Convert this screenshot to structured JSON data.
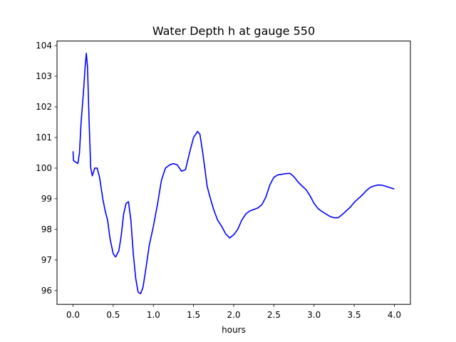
{
  "chart_data": {
    "type": "line",
    "title": "Water Depth h at gauge 550",
    "xlabel": "hours",
    "ylabel": "",
    "xlim": [
      -0.2,
      4.2
    ],
    "ylim": [
      95.55,
      104.15
    ],
    "grid": false,
    "legend": "none",
    "x_ticks": [
      0.0,
      0.5,
      1.0,
      1.5,
      2.0,
      2.5,
      3.0,
      3.5,
      4.0
    ],
    "x_tick_labels": [
      "0.0",
      "0.5",
      "1.0",
      "1.5",
      "2.0",
      "2.5",
      "3.0",
      "3.5",
      "4.0"
    ],
    "y_ticks": [
      96,
      97,
      98,
      99,
      100,
      101,
      102,
      103,
      104
    ],
    "y_tick_labels": [
      "96",
      "97",
      "98",
      "99",
      "100",
      "101",
      "102",
      "103",
      "104"
    ],
    "series": [
      {
        "color": "#0000ff",
        "points": [
          [
            0.0,
            100.55
          ],
          [
            0.005,
            100.25
          ],
          [
            0.03,
            100.2
          ],
          [
            0.06,
            100.15
          ],
          [
            0.08,
            100.5
          ],
          [
            0.1,
            101.5
          ],
          [
            0.13,
            102.5
          ],
          [
            0.15,
            103.3
          ],
          [
            0.165,
            103.75
          ],
          [
            0.18,
            103.3
          ],
          [
            0.2,
            101.5
          ],
          [
            0.22,
            100.0
          ],
          [
            0.24,
            99.75
          ],
          [
            0.27,
            100.0
          ],
          [
            0.3,
            100.0
          ],
          [
            0.33,
            99.7
          ],
          [
            0.37,
            99.0
          ],
          [
            0.4,
            98.6
          ],
          [
            0.43,
            98.3
          ],
          [
            0.46,
            97.7
          ],
          [
            0.5,
            97.2
          ],
          [
            0.53,
            97.1
          ],
          [
            0.57,
            97.3
          ],
          [
            0.6,
            97.8
          ],
          [
            0.63,
            98.5
          ],
          [
            0.66,
            98.85
          ],
          [
            0.69,
            98.9
          ],
          [
            0.72,
            98.3
          ],
          [
            0.75,
            97.2
          ],
          [
            0.78,
            96.4
          ],
          [
            0.81,
            95.95
          ],
          [
            0.84,
            95.9
          ],
          [
            0.87,
            96.1
          ],
          [
            0.9,
            96.6
          ],
          [
            0.95,
            97.5
          ],
          [
            1.0,
            98.1
          ],
          [
            1.05,
            98.8
          ],
          [
            1.1,
            99.6
          ],
          [
            1.15,
            100.0
          ],
          [
            1.2,
            100.1
          ],
          [
            1.25,
            100.15
          ],
          [
            1.3,
            100.1
          ],
          [
            1.35,
            99.9
          ],
          [
            1.4,
            99.95
          ],
          [
            1.45,
            100.5
          ],
          [
            1.5,
            101.0
          ],
          [
            1.55,
            101.2
          ],
          [
            1.58,
            101.1
          ],
          [
            1.62,
            100.4
          ],
          [
            1.67,
            99.4
          ],
          [
            1.7,
            99.1
          ],
          [
            1.75,
            98.65
          ],
          [
            1.8,
            98.3
          ],
          [
            1.85,
            98.1
          ],
          [
            1.9,
            97.85
          ],
          [
            1.95,
            97.72
          ],
          [
            2.0,
            97.82
          ],
          [
            2.05,
            98.0
          ],
          [
            2.1,
            98.3
          ],
          [
            2.15,
            98.5
          ],
          [
            2.2,
            98.6
          ],
          [
            2.25,
            98.65
          ],
          [
            2.3,
            98.7
          ],
          [
            2.35,
            98.8
          ],
          [
            2.4,
            99.05
          ],
          [
            2.45,
            99.45
          ],
          [
            2.5,
            99.7
          ],
          [
            2.55,
            99.78
          ],
          [
            2.6,
            99.8
          ],
          [
            2.65,
            99.82
          ],
          [
            2.7,
            99.83
          ],
          [
            2.75,
            99.72
          ],
          [
            2.8,
            99.55
          ],
          [
            2.85,
            99.42
          ],
          [
            2.9,
            99.3
          ],
          [
            2.95,
            99.1
          ],
          [
            3.0,
            98.85
          ],
          [
            3.05,
            98.68
          ],
          [
            3.1,
            98.58
          ],
          [
            3.15,
            98.5
          ],
          [
            3.2,
            98.42
          ],
          [
            3.25,
            98.38
          ],
          [
            3.3,
            98.38
          ],
          [
            3.35,
            98.48
          ],
          [
            3.4,
            98.6
          ],
          [
            3.45,
            98.72
          ],
          [
            3.5,
            98.88
          ],
          [
            3.55,
            99.0
          ],
          [
            3.6,
            99.12
          ],
          [
            3.65,
            99.26
          ],
          [
            3.7,
            99.37
          ],
          [
            3.75,
            99.42
          ],
          [
            3.8,
            99.45
          ],
          [
            3.85,
            99.44
          ],
          [
            3.9,
            99.4
          ],
          [
            3.95,
            99.36
          ],
          [
            4.0,
            99.32
          ]
        ]
      }
    ]
  }
}
